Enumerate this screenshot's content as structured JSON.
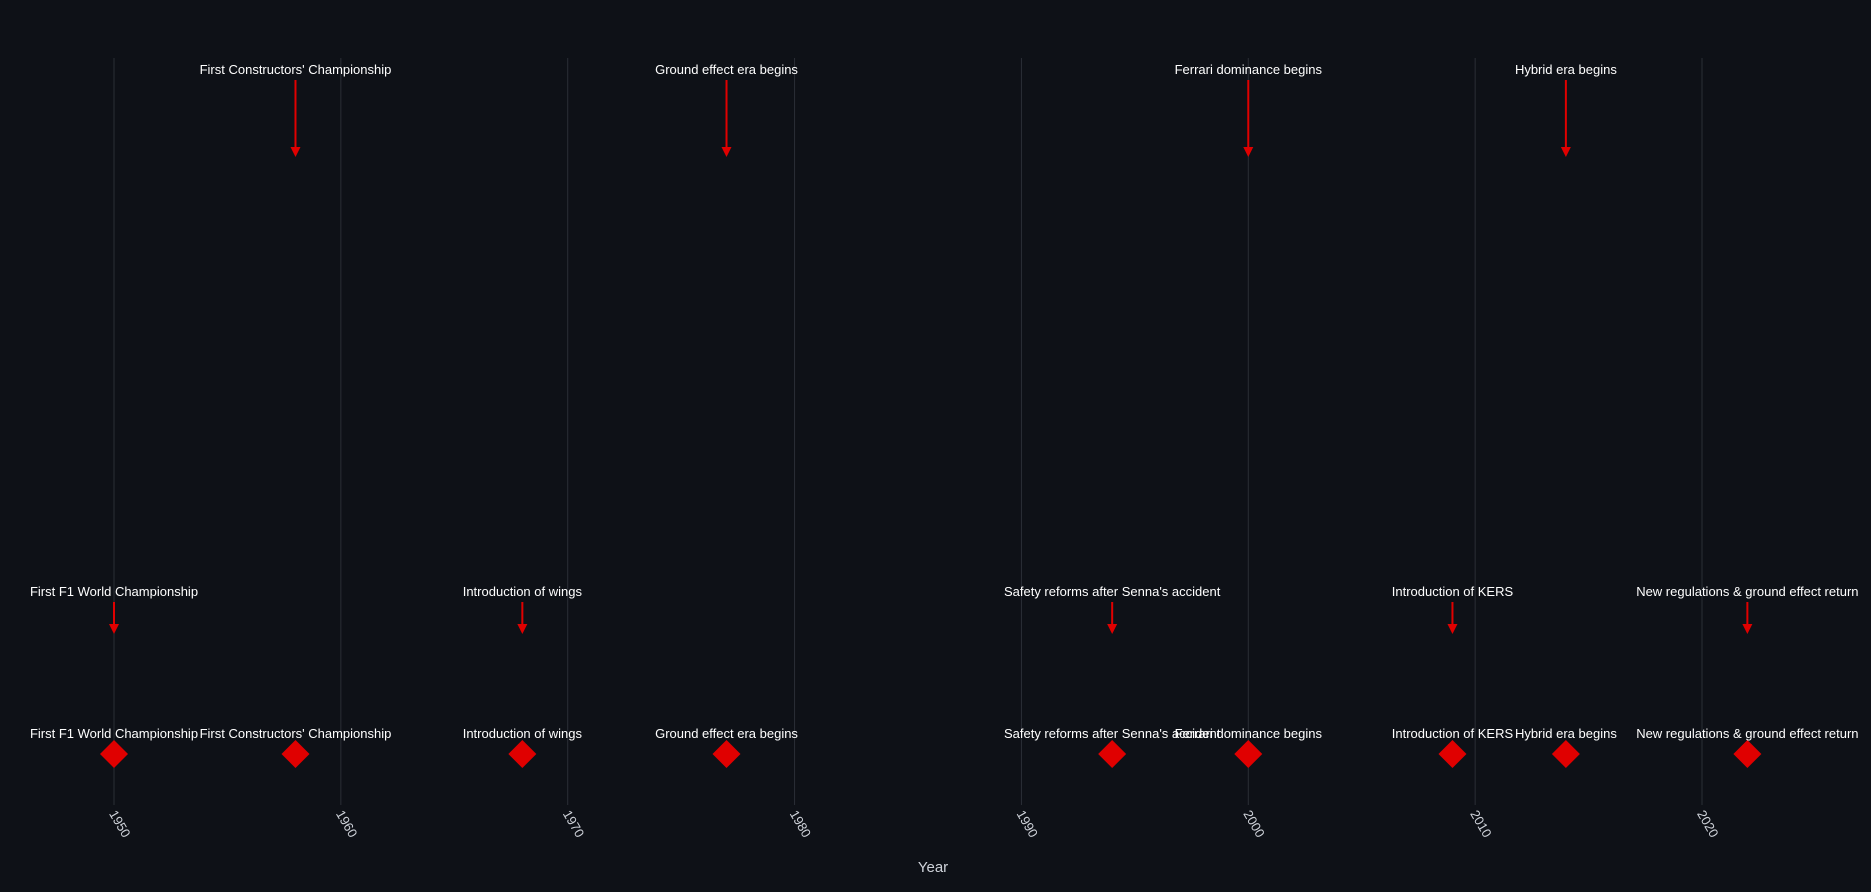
{
  "chart_data": {
    "type": "scatter",
    "title": "",
    "xlabel": "Year",
    "ylabel": "",
    "xlim": [
      1949,
      2022.5
    ],
    "xticks": [
      1950,
      1960,
      1970,
      1980,
      1990,
      2000,
      2010,
      2020
    ],
    "grid": true,
    "marker": "diamond",
    "colors": {
      "background": "#0e1117",
      "marker": "#e00000",
      "arrow": "#e00000",
      "text": "#ffffff",
      "grid": "#2a2e36"
    },
    "events": [
      {
        "year": 1950,
        "label": "First F1 World Championship"
      },
      {
        "year": 1958,
        "label": "First Constructors' Championship"
      },
      {
        "year": 1968,
        "label": "Introduction of wings"
      },
      {
        "year": 1977,
        "label": "Ground effect era begins"
      },
      {
        "year": 1994,
        "label": "Safety reforms after Senna's accident"
      },
      {
        "year": 2000,
        "label": "Ferrari dominance begins"
      },
      {
        "year": 2009,
        "label": "Introduction of KERS"
      },
      {
        "year": 2014,
        "label": "Hybrid era begins"
      },
      {
        "year": 2022,
        "label": "New regulations & ground effect return"
      }
    ],
    "annotations": [
      {
        "year": 1950,
        "label": "First F1 World Championship",
        "level": "low"
      },
      {
        "year": 1958,
        "label": "First Constructors' Championship",
        "level": "high"
      },
      {
        "year": 1968,
        "label": "Introduction of wings",
        "level": "low"
      },
      {
        "year": 1977,
        "label": "Ground effect era begins",
        "level": "high"
      },
      {
        "year": 1994,
        "label": "Safety reforms after Senna's accident",
        "level": "low"
      },
      {
        "year": 2000,
        "label": "Ferrari dominance begins",
        "level": "high"
      },
      {
        "year": 2009,
        "label": "Introduction of KERS",
        "level": "low"
      },
      {
        "year": 2014,
        "label": "Hybrid era begins",
        "level": "high"
      },
      {
        "year": 2022,
        "label": "New regulations & ground effect return",
        "level": "low"
      }
    ]
  }
}
